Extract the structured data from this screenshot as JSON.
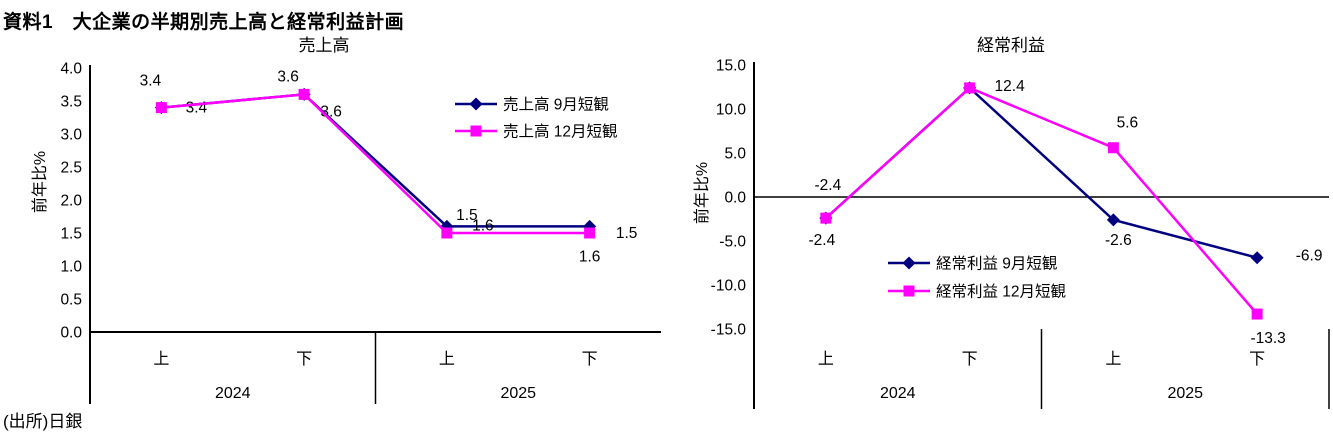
{
  "page": {
    "title": "資料1　大企業の半期別売上高と経常利益計画",
    "source": "(出所)日銀"
  },
  "colors": {
    "september_series": "#000080",
    "december_series": "#FF00FF",
    "negative_value_label": "#FF0000",
    "axis": "#000000",
    "background": "#FFFFFF"
  },
  "chart_data": [
    {
      "type": "line",
      "title": "売上高",
      "ylabel": "前年比%",
      "ylim": [
        0.0,
        4.0
      ],
      "ytick_step": 0.5,
      "ytick_decimals": 1,
      "grid": false,
      "negative_red": false,
      "categories": [
        "上",
        "下",
        "上",
        "下"
      ],
      "year_groups": [
        {
          "label": "2024",
          "span": [
            0,
            1
          ]
        },
        {
          "label": "2025",
          "span": [
            2,
            3
          ]
        }
      ],
      "legend_position": "upper-right-inside",
      "series": [
        {
          "name": "売上高 9月短観",
          "color": "#000080",
          "marker": "diamond",
          "values": [
            3.4,
            3.6,
            1.6,
            1.6
          ],
          "labels": [
            {
              "text": "3.4",
              "dx": 35,
              "dy": 5
            },
            {
              "text": "3.6",
              "dx": 27,
              "dy": 22
            },
            {
              "text": "1.6",
              "dx": 36,
              "dy": 4
            },
            {
              "text": "1.6",
              "dx": 0,
              "dy": 35
            }
          ]
        },
        {
          "name": "売上高 12月短観",
          "color": "#FF00FF",
          "marker": "square",
          "values": [
            3.4,
            3.6,
            1.5,
            1.5
          ],
          "labels": [
            {
              "text": "3.4",
              "dx": -11,
              "dy": -22
            },
            {
              "text": "3.6",
              "dx": -16,
              "dy": -13
            },
            {
              "text": "1.5",
              "dx": 20,
              "dy": -13
            },
            {
              "text": "1.5",
              "dx": 37,
              "dy": 5
            }
          ]
        }
      ]
    },
    {
      "type": "line",
      "title": "経常利益",
      "ylabel": "前年比%",
      "ylim": [
        -15.0,
        15.0
      ],
      "ytick_step": 5.0,
      "ytick_decimals": 1,
      "grid": false,
      "negative_red": true,
      "categories": [
        "上",
        "下",
        "上",
        "下"
      ],
      "year_groups": [
        {
          "label": "2024",
          "span": [
            0,
            1
          ]
        },
        {
          "label": "2025",
          "span": [
            2,
            3
          ]
        }
      ],
      "legend_position": "lower-middle-inside",
      "series": [
        {
          "name": "経常利益 9月短観",
          "color": "#000080",
          "marker": "diamond",
          "values": [
            -2.4,
            12.4,
            -2.6,
            -6.9
          ],
          "labels": [
            {
              "text": "-2.4",
              "dx": -4,
              "dy": 27
            },
            {
              "text": "12.4",
              "dx": 40,
              "dy": 3
            },
            {
              "text": "-2.6",
              "dx": 5,
              "dy": 25
            },
            {
              "text": "-6.9",
              "dx": 52,
              "dy": 3
            }
          ]
        },
        {
          "name": "経常利益 12月短観",
          "color": "#FF00FF",
          "marker": "square",
          "values": [
            -2.4,
            12.4,
            5.6,
            -13.3
          ],
          "labels": [
            {
              "text": "-2.4",
              "dx": 2,
              "dy": -28
            },
            null,
            {
              "text": "5.6",
              "dx": 14,
              "dy": -20
            },
            {
              "text": "-13.3",
              "dx": 11,
              "dy": 29
            }
          ]
        }
      ]
    }
  ]
}
